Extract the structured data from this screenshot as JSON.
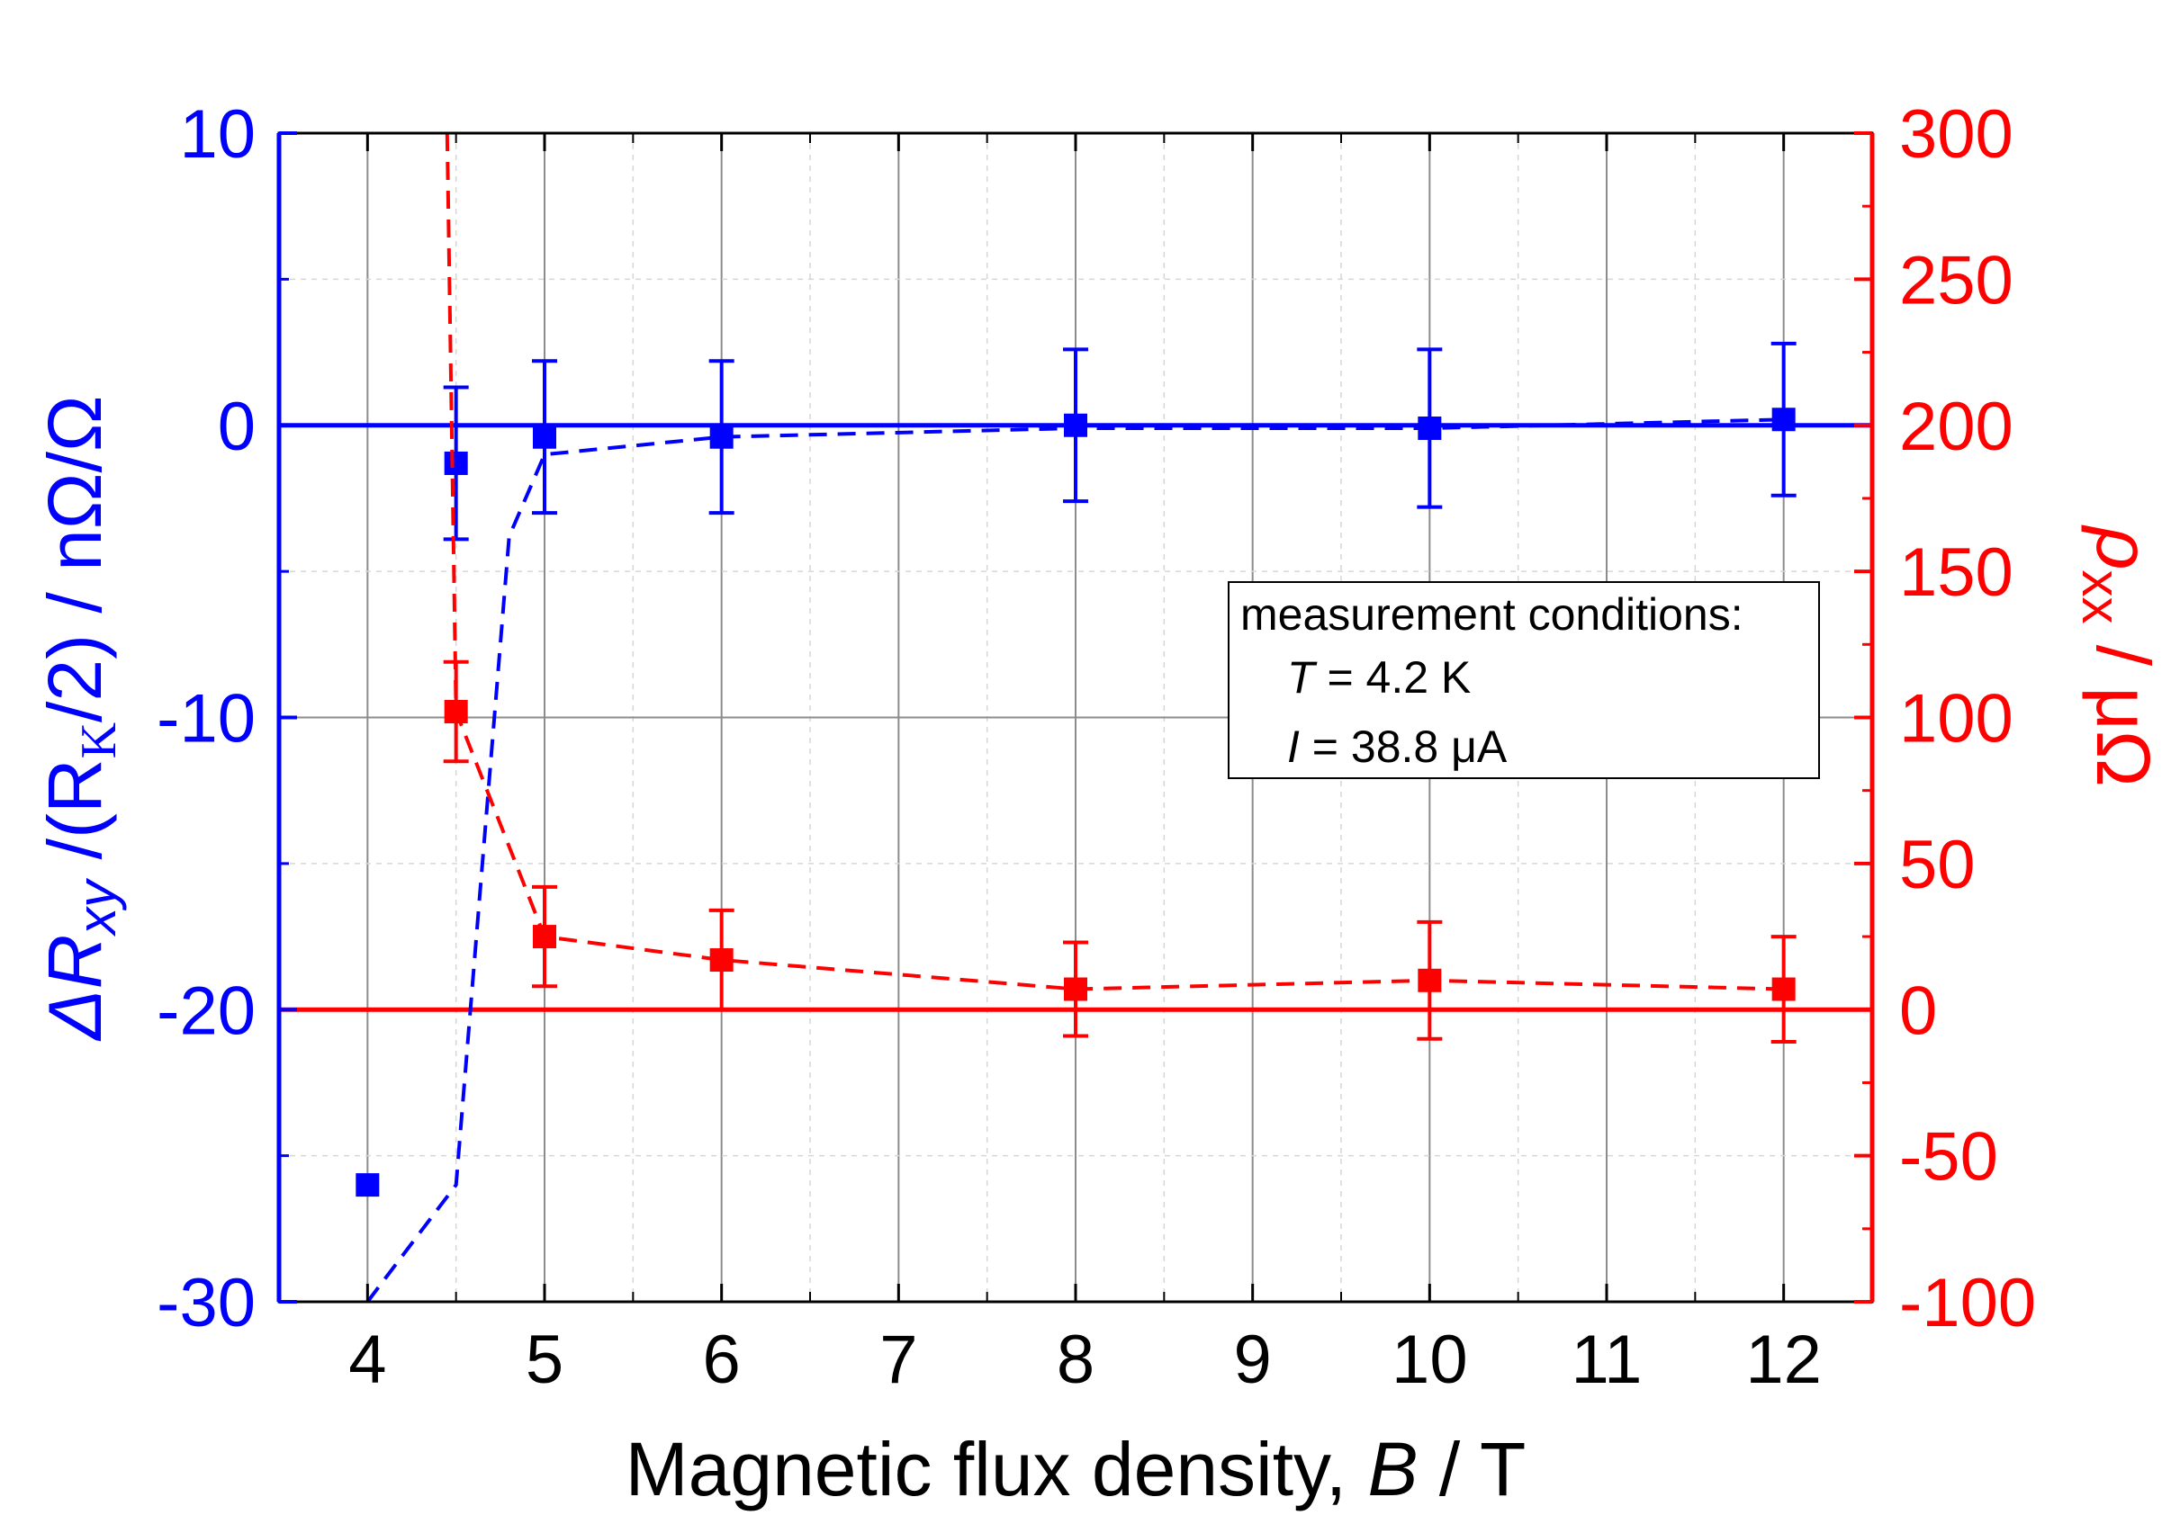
{
  "chart_data": {
    "type": "scatter",
    "x_axis": {
      "label_prefix": "Magnetic flux density, ",
      "label_symbol": "B",
      "label_suffix": " / T",
      "range": [
        3.5,
        12.5
      ],
      "ticks": [
        4,
        5,
        6,
        7,
        8,
        9,
        10,
        11,
        12
      ],
      "tick_labels": [
        "4",
        "5",
        "6",
        "7",
        "8",
        "9",
        "10",
        "11",
        "12"
      ]
    },
    "y_left": {
      "label_delta": "ΔR",
      "label_sub": "xy",
      "label_mid": " /(R",
      "label_sub2": "K",
      "label_end": "/2)  /  nΩ/Ω",
      "range": [
        -30,
        10
      ],
      "ticks": [
        -30,
        -20,
        -10,
        0,
        10
      ],
      "tick_labels": [
        "-30",
        "-20",
        "-10",
        "0",
        "10"
      ],
      "color": "#0000ff"
    },
    "y_right": {
      "label_symbol": "ρ",
      "label_sub": "xx",
      "label_end": " / μΩ",
      "range": [
        -100,
        300
      ],
      "ticks": [
        -100,
        -50,
        0,
        50,
        100,
        150,
        200,
        250,
        300
      ],
      "tick_labels": [
        "-100",
        "-50",
        "0",
        "50",
        "100",
        "150",
        "200",
        "250",
        "300"
      ],
      "color": "#ff0000"
    },
    "series": [
      {
        "name": "ΔRxy/(RK/2)",
        "axis": "left",
        "color": "#0000ff",
        "x": [
          4,
          4.5,
          5,
          6,
          8,
          10,
          12
        ],
        "y": [
          -26,
          -1.3,
          -0.4,
          -0.4,
          0.0,
          -0.1,
          0.2
        ],
        "err": [
          null,
          2.6,
          2.6,
          2.6,
          2.6,
          2.7,
          2.6
        ],
        "dashed_path_x": [
          4,
          4.5,
          4.8,
          5,
          6,
          8,
          10,
          12
        ],
        "dashed_path_y": [
          -30,
          -26,
          -3.8,
          -1.0,
          -0.4,
          -0.1,
          -0.1,
          0.2
        ]
      },
      {
        "name": "ρxx",
        "axis": "right",
        "color": "#ff0000",
        "x": [
          4.5,
          5,
          6,
          8,
          10,
          12
        ],
        "y": [
          102,
          25,
          17,
          7,
          10,
          7
        ],
        "err": [
          17,
          17,
          17,
          16,
          20,
          18
        ],
        "dashed_path_x": [
          4.45,
          4.5,
          5,
          6,
          8,
          10,
          12
        ],
        "dashed_path_y": [
          300,
          102,
          25,
          17,
          7,
          10,
          7
        ]
      }
    ],
    "reference_lines": [
      {
        "axis": "left",
        "value": 0,
        "color": "#0000ff"
      },
      {
        "axis": "right",
        "value": 0,
        "color": "#ff0000"
      }
    ],
    "legend": {
      "placement": "center-right",
      "title": "measurement conditions:",
      "lines": [
        {
          "symbol": "T",
          "text": " = 4.2 K"
        },
        {
          "symbol": "I",
          "text": " = 38.8 μA"
        }
      ]
    },
    "grid": true
  }
}
